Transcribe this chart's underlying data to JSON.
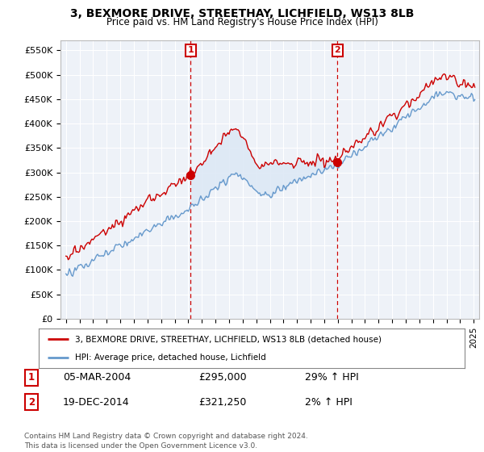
{
  "title": "3, BEXMORE DRIVE, STREETHAY, LICHFIELD, WS13 8LB",
  "subtitle": "Price paid vs. HM Land Registry's House Price Index (HPI)",
  "ylim": [
    0,
    570000
  ],
  "yticks": [
    0,
    50000,
    100000,
    150000,
    200000,
    250000,
    300000,
    350000,
    400000,
    450000,
    500000,
    550000
  ],
  "ytick_labels": [
    "£0",
    "£50K",
    "£100K",
    "£150K",
    "£200K",
    "£250K",
    "£300K",
    "£350K",
    "£400K",
    "£450K",
    "£500K",
    "£550K"
  ],
  "sale1_date": 2004.18,
  "sale1_price": 295000,
  "sale1_text": "05-MAR-2004",
  "sale1_amount": "£295,000",
  "sale1_hpi": "29% ↑ HPI",
  "sale2_date": 2014.97,
  "sale2_price": 321250,
  "sale2_text": "19-DEC-2014",
  "sale2_amount": "£321,250",
  "sale2_hpi": "2% ↑ HPI",
  "red_color": "#cc0000",
  "blue_color": "#6699cc",
  "fill_color": "#dde8f5",
  "legend_label1": "3, BEXMORE DRIVE, STREETHAY, LICHFIELD, WS13 8LB (detached house)",
  "legend_label2": "HPI: Average price, detached house, Lichfield",
  "footer": "Contains HM Land Registry data © Crown copyright and database right 2024.\nThis data is licensed under the Open Government Licence v3.0.",
  "bg_color": "#ffffff",
  "plot_bg_color": "#eef2f8",
  "grid_color": "#ffffff"
}
